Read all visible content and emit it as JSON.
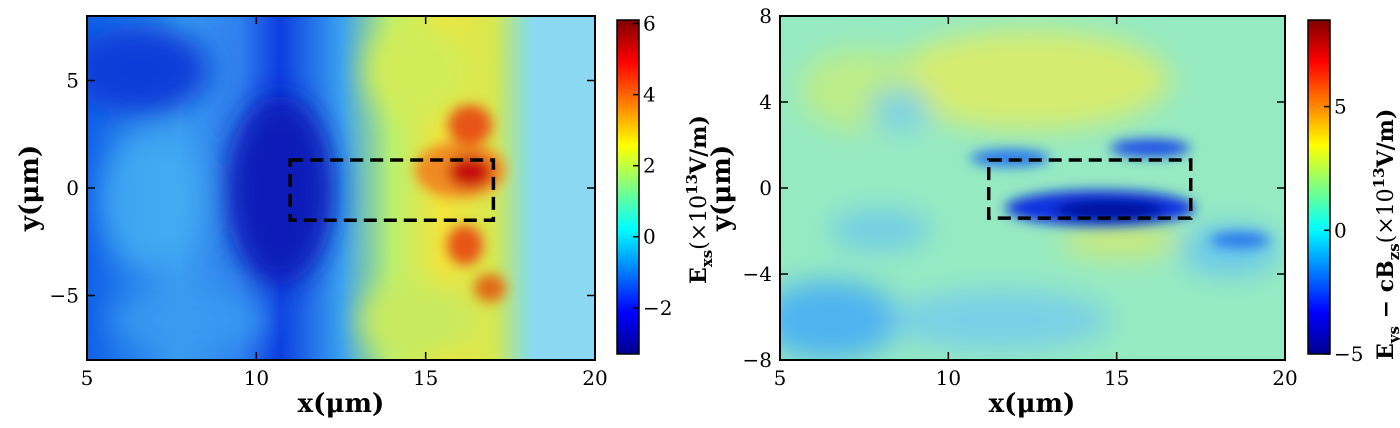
{
  "chart_data": [
    {
      "type": "heatmap",
      "xlabel": "x(μm)",
      "ylabel": "y(μm)",
      "xlim": [
        5,
        20
      ],
      "ylim": [
        -8,
        8
      ],
      "xticks": [
        5,
        10,
        15,
        20
      ],
      "yticks": [
        -5,
        0,
        5
      ],
      "colorbar": {
        "label_main": "E",
        "label_sub": "xs",
        "label_rest": "(×10",
        "label_exp": "13",
        "label_unit": "V/m)",
        "range": [
          -3.3,
          6.1
        ],
        "ticks": [
          -2,
          0,
          2,
          4,
          6
        ],
        "colormap": "jet"
      },
      "highlight_box": {
        "x": [
          11,
          17
        ],
        "y": [
          -1.5,
          1.3
        ]
      },
      "features": [
        {
          "x": 5.5,
          "y": 4,
          "value": -2.5
        },
        {
          "x": 10.5,
          "y": 0,
          "value": -3.2
        },
        {
          "x": 11,
          "y": 3,
          "value": -2.5
        },
        {
          "x": 7,
          "y": -3,
          "value": -1.5
        },
        {
          "x": 16.4,
          "y": 0.6,
          "value": 5.8
        },
        {
          "x": 16.5,
          "y": 3.1,
          "value": 4.5
        },
        {
          "x": 16.0,
          "y": -2.6,
          "value": 4.2
        },
        {
          "x": 16.8,
          "y": -4.6,
          "value": 4.0
        },
        {
          "x": 14.8,
          "y": 5.0,
          "value": 2.0
        },
        {
          "x": 14.5,
          "y": -5.5,
          "value": 1.8
        }
      ]
    },
    {
      "type": "heatmap",
      "xlabel": "x(μm)",
      "ylabel": "y(μm)",
      "xlim": [
        5,
        20
      ],
      "ylim": [
        -8,
        8
      ],
      "xticks": [
        5,
        10,
        15,
        20
      ],
      "yticks": [
        -8,
        -4,
        0,
        4,
        8
      ],
      "colorbar": {
        "label_main": "E",
        "label_sub": "ys",
        "label_mid": " − cB",
        "label_sub2": "zs",
        "label_rest": "(×10",
        "label_exp": "13",
        "label_unit": "V/m)",
        "range": [
          -5,
          8.5
        ],
        "ticks": [
          -5,
          0,
          5
        ],
        "colormap": "jet"
      },
      "highlight_box": {
        "x": [
          11.2,
          17.2
        ],
        "y": [
          -1.4,
          1.3
        ]
      },
      "features": [
        {
          "x": 14.5,
          "y": -0.9,
          "value": -5.0
        },
        {
          "x": 16.2,
          "y": 2.2,
          "value": -3.5
        },
        {
          "x": 11.8,
          "y": 1.6,
          "value": -2.5
        },
        {
          "x": 17.5,
          "y": -3.5,
          "value": -2.0
        },
        {
          "x": 8.2,
          "y": -2.2,
          "value": -1.2
        },
        {
          "x": 14.0,
          "y": 5.5,
          "value": 2.5
        },
        {
          "x": 10.5,
          "y": 4.5,
          "value": 2.0
        },
        {
          "x": 12.5,
          "y": -3.0,
          "value": 1.5
        }
      ]
    }
  ]
}
